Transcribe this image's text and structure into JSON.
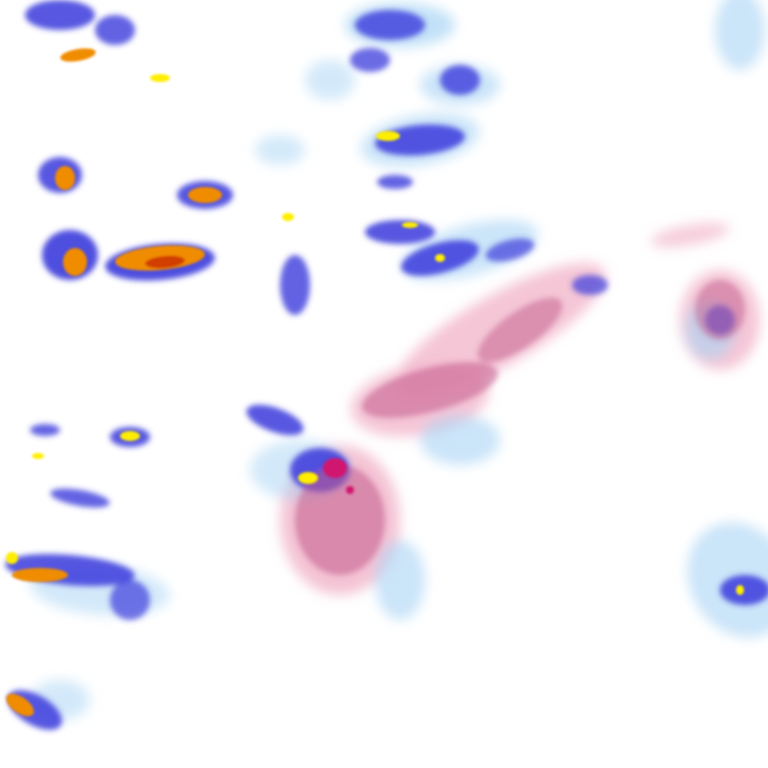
{
  "map": {
    "type": "precipitation-radar-tile",
    "background": "#ffffff",
    "palette": {
      "rain_light": "#a8d4f5",
      "rain_moderate": "#3b3bdc",
      "rain_heavy": "#ffee00",
      "rain_very_heavy": "#f08c00",
      "rain_extreme": "#d23c00",
      "mix_light": "#f2b8cc",
      "mix_moderate": "#c25a8a",
      "mix_heavy": "#d0146e"
    }
  }
}
